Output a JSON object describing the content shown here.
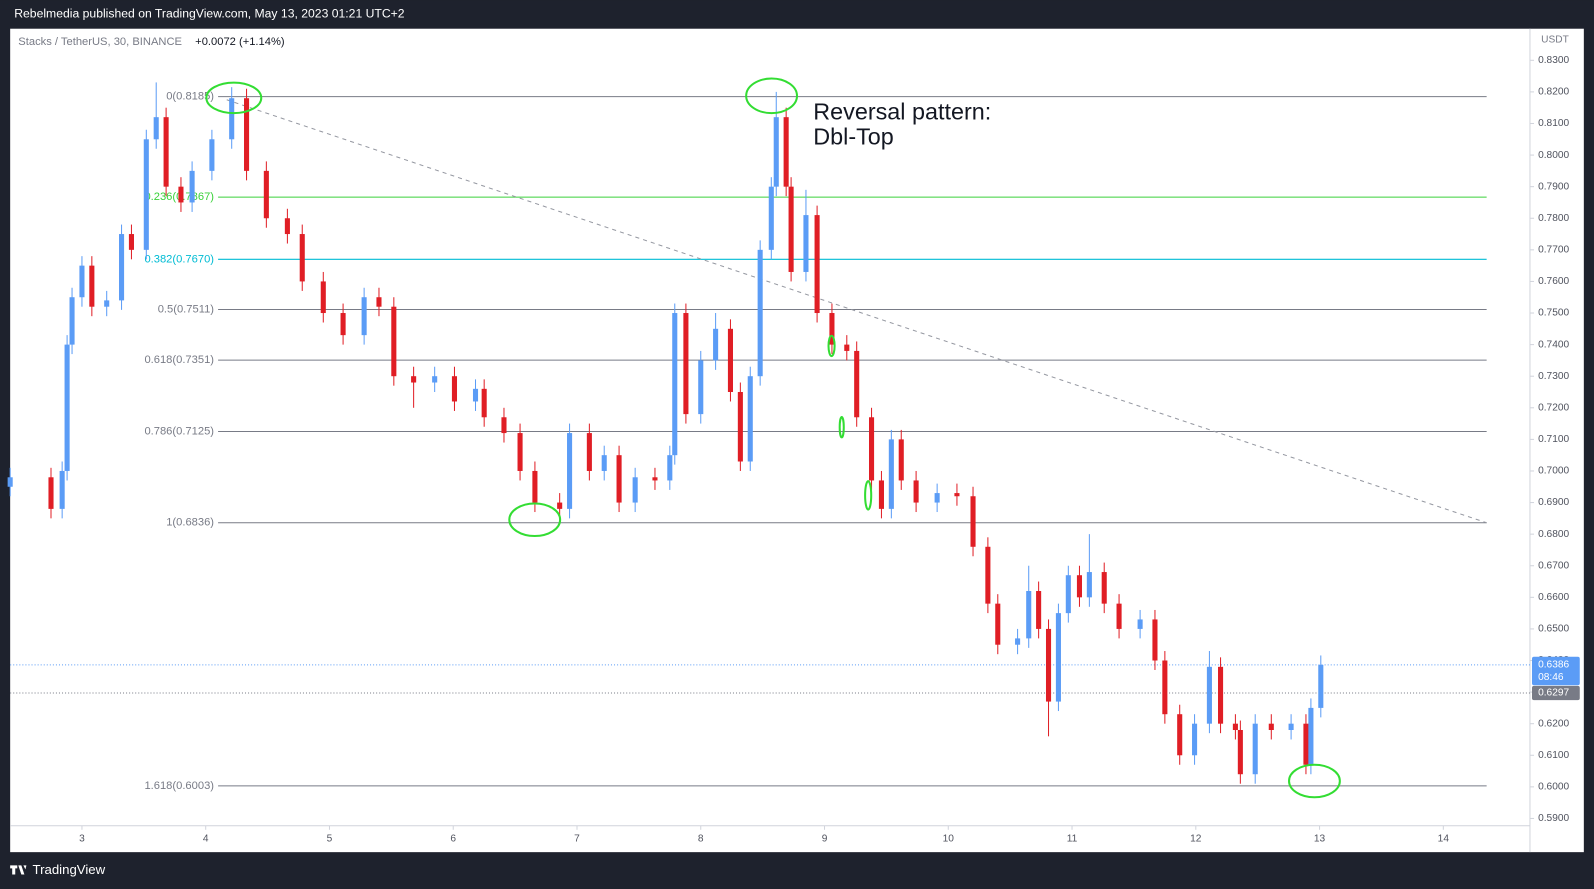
{
  "header": {
    "publisher": "Rebelmedia published on TradingView.com, May 13, 2023 01:21 UTC+2"
  },
  "footer": {
    "brand": "TradingView"
  },
  "chart_data": {
    "type": "candlestick",
    "title": "Stacks / TetherUS, 30, BINANCE",
    "change": "+0.0072 (+1.14%)",
    "y_axis_unit": "USDT",
    "up_color": "#5b9cf6",
    "down_color": "#e01e25",
    "x": [
      2.42,
      2.75,
      2.84,
      2.88,
      2.92,
      3.0,
      3.08,
      3.2,
      3.32,
      3.4,
      3.52,
      3.6,
      3.68,
      3.8,
      3.89,
      4.05,
      4.21,
      4.33,
      4.49,
      4.66,
      4.78,
      4.95,
      5.11,
      5.28,
      5.4,
      5.52,
      5.68,
      5.85,
      6.01,
      6.18,
      6.25,
      6.41,
      6.54,
      6.66,
      6.86,
      6.94,
      7.1,
      7.22,
      7.34,
      7.47,
      7.63,
      7.75,
      7.79,
      7.88,
      8.0,
      8.12,
      8.24,
      8.32,
      8.4,
      8.48,
      8.57,
      8.61,
      8.69,
      8.73,
      8.85,
      8.94,
      9.06,
      9.18,
      9.26,
      9.38,
      9.46,
      9.54,
      9.62,
      9.74,
      9.91,
      10.07,
      10.2,
      10.32,
      10.4,
      10.56,
      10.65,
      10.73,
      10.81,
      10.89,
      10.97,
      11.06,
      11.14,
      11.26,
      11.38,
      11.55,
      11.67,
      11.75,
      11.87,
      11.99,
      12.11,
      12.2,
      12.32,
      12.36,
      12.48,
      12.61,
      12.77,
      12.89,
      12.93,
      13.01
    ],
    "open": [
      0.695,
      0.698,
      0.688,
      0.7,
      0.74,
      0.755,
      0.765,
      0.752,
      0.754,
      0.775,
      0.77,
      0.805,
      0.812,
      0.79,
      0.785,
      0.795,
      0.805,
      0.818,
      0.795,
      0.78,
      0.775,
      0.76,
      0.75,
      0.743,
      0.755,
      0.752,
      0.73,
      0.728,
      0.73,
      0.722,
      0.726,
      0.717,
      0.712,
      0.7,
      0.69,
      0.688,
      0.712,
      0.7,
      0.705,
      0.69,
      0.698,
      0.697,
      0.705,
      0.75,
      0.718,
      0.735,
      0.745,
      0.725,
      0.703,
      0.73,
      0.77,
      0.79,
      0.812,
      0.79,
      0.763,
      0.781,
      0.75,
      0.74,
      0.738,
      0.717,
      0.697,
      0.688,
      0.71,
      0.697,
      0.69,
      0.693,
      0.692,
      0.676,
      0.658,
      0.645,
      0.647,
      0.662,
      0.65,
      0.627,
      0.655,
      0.667,
      0.66,
      0.668,
      0.658,
      0.65,
      0.653,
      0.64,
      0.623,
      0.61,
      0.62,
      0.638,
      0.62,
      0.618,
      0.604,
      0.62,
      0.618,
      0.62,
      0.607,
      0.625
    ],
    "high": [
      0.701,
      0.701,
      0.703,
      0.743,
      0.758,
      0.768,
      0.768,
      0.757,
      0.778,
      0.778,
      0.808,
      0.823,
      0.815,
      0.793,
      0.798,
      0.808,
      0.8215,
      0.821,
      0.798,
      0.783,
      0.778,
      0.763,
      0.753,
      0.758,
      0.758,
      0.755,
      0.733,
      0.733,
      0.733,
      0.729,
      0.729,
      0.72,
      0.715,
      0.703,
      0.693,
      0.715,
      0.715,
      0.708,
      0.708,
      0.701,
      0.701,
      0.708,
      0.753,
      0.753,
      0.738,
      0.75,
      0.748,
      0.728,
      0.733,
      0.773,
      0.793,
      0.82,
      0.815,
      0.793,
      0.789,
      0.784,
      0.753,
      0.743,
      0.741,
      0.72,
      0.7,
      0.713,
      0.713,
      0.7,
      0.696,
      0.696,
      0.695,
      0.679,
      0.661,
      0.65,
      0.67,
      0.665,
      0.653,
      0.658,
      0.67,
      0.67,
      0.68,
      0.671,
      0.661,
      0.656,
      0.656,
      0.643,
      0.626,
      0.623,
      0.643,
      0.641,
      0.623,
      0.621,
      0.623,
      0.623,
      0.623,
      0.623,
      0.628,
      0.6416
    ],
    "low": [
      0.692,
      0.685,
      0.685,
      0.697,
      0.737,
      0.752,
      0.749,
      0.749,
      0.751,
      0.767,
      0.767,
      0.802,
      0.787,
      0.782,
      0.782,
      0.792,
      0.802,
      0.792,
      0.777,
      0.772,
      0.757,
      0.747,
      0.74,
      0.74,
      0.749,
      0.727,
      0.72,
      0.725,
      0.719,
      0.719,
      0.714,
      0.709,
      0.697,
      0.687,
      0.684,
      0.685,
      0.697,
      0.697,
      0.687,
      0.687,
      0.694,
      0.694,
      0.702,
      0.715,
      0.715,
      0.732,
      0.722,
      0.7,
      0.7,
      0.727,
      0.767,
      0.787,
      0.787,
      0.76,
      0.76,
      0.747,
      0.737,
      0.735,
      0.714,
      0.694,
      0.685,
      0.685,
      0.694,
      0.687,
      0.687,
      0.689,
      0.673,
      0.655,
      0.642,
      0.642,
      0.644,
      0.647,
      0.616,
      0.624,
      0.652,
      0.657,
      0.657,
      0.655,
      0.647,
      0.647,
      0.637,
      0.62,
      0.607,
      0.607,
      0.617,
      0.617,
      0.615,
      0.601,
      0.601,
      0.615,
      0.615,
      0.604,
      0.604,
      0.622
    ],
    "close": [
      0.698,
      0.688,
      0.7,
      0.74,
      0.755,
      0.765,
      0.752,
      0.754,
      0.775,
      0.77,
      0.805,
      0.812,
      0.79,
      0.785,
      0.795,
      0.805,
      0.818,
      0.795,
      0.78,
      0.775,
      0.76,
      0.75,
      0.743,
      0.755,
      0.752,
      0.73,
      0.728,
      0.73,
      0.722,
      0.726,
      0.717,
      0.712,
      0.7,
      0.69,
      0.688,
      0.712,
      0.7,
      0.705,
      0.69,
      0.698,
      0.697,
      0.705,
      0.75,
      0.718,
      0.735,
      0.745,
      0.725,
      0.703,
      0.73,
      0.77,
      0.79,
      0.812,
      0.79,
      0.763,
      0.781,
      0.75,
      0.74,
      0.738,
      0.717,
      0.697,
      0.688,
      0.71,
      0.697,
      0.69,
      0.693,
      0.692,
      0.676,
      0.658,
      0.645,
      0.647,
      0.662,
      0.65,
      0.627,
      0.655,
      0.667,
      0.66,
      0.668,
      0.658,
      0.65,
      0.653,
      0.64,
      0.623,
      0.61,
      0.62,
      0.638,
      0.62,
      0.618,
      0.604,
      0.62,
      0.618,
      0.62,
      0.607,
      0.625,
      0.6386
    ],
    "xlim": [
      2.42,
      14.7
    ],
    "xticks": [
      3,
      4,
      5,
      6,
      7,
      8,
      9,
      10,
      11,
      12,
      13,
      14
    ],
    "ylim": [
      0.5877,
      0.84
    ],
    "yticks": [
      {
        "value": 0.59,
        "label": "0.5900"
      },
      {
        "value": 0.6,
        "label": "0.6000"
      },
      {
        "value": 0.61,
        "label": "0.6100"
      },
      {
        "value": 0.62,
        "label": "0.6200"
      },
      {
        "value": 0.63,
        "label": "0.6300"
      },
      {
        "value": 0.64,
        "label": "0.6400"
      },
      {
        "value": 0.65,
        "label": "0.6500"
      },
      {
        "value": 0.66,
        "label": "0.6600"
      },
      {
        "value": 0.67,
        "label": "0.6700"
      },
      {
        "value": 0.68,
        "label": "0.6800"
      },
      {
        "value": 0.69,
        "label": "0.6900"
      },
      {
        "value": 0.7,
        "label": "0.7000"
      },
      {
        "value": 0.71,
        "label": "0.7100"
      },
      {
        "value": 0.72,
        "label": "0.7200"
      },
      {
        "value": 0.73,
        "label": "0.7300"
      },
      {
        "value": 0.74,
        "label": "0.7400"
      },
      {
        "value": 0.75,
        "label": "0.7500"
      },
      {
        "value": 0.76,
        "label": "0.7600"
      },
      {
        "value": 0.77,
        "label": "0.7700"
      },
      {
        "value": 0.78,
        "label": "0.7800"
      },
      {
        "value": 0.79,
        "label": "0.7900"
      },
      {
        "value": 0.8,
        "label": "0.8000"
      },
      {
        "value": 0.81,
        "label": "0.8100"
      },
      {
        "value": 0.82,
        "label": "0.8200"
      },
      {
        "value": 0.83,
        "label": "0.8300"
      }
    ],
    "fib_x_range": [
      4.1,
      14.35
    ],
    "fib_levels": [
      {
        "label": "0(0.8185)",
        "value": 0.8185,
        "color": "#787b86"
      },
      {
        "label": "0.236(0.7867)",
        "value": 0.7867,
        "color": "#3ad13a"
      },
      {
        "label": "0.382(0.7670)",
        "value": 0.767,
        "color": "#00bcd4"
      },
      {
        "label": "0.5(0.7511)",
        "value": 0.7511,
        "color": "#787b86"
      },
      {
        "label": "0.618(0.7351)",
        "value": 0.7351,
        "color": "#787b86"
      },
      {
        "label": "0.786(0.7125)",
        "value": 0.7125,
        "color": "#787b86"
      },
      {
        "label": "1(0.6836)",
        "value": 0.6836,
        "color": "#787b86"
      },
      {
        "label": "1.618(0.6003)",
        "value": 0.6003,
        "color": "#787b86"
      }
    ],
    "trendline": {
      "x": [
        4.17,
        14.35
      ],
      "y": [
        0.8175,
        0.6836
      ]
    },
    "annotations": [
      "Reversal pattern:",
      "Dbl-Top"
    ],
    "last_price": 0.6386,
    "countdown": "08:46",
    "ref_price": 0.6297
  }
}
